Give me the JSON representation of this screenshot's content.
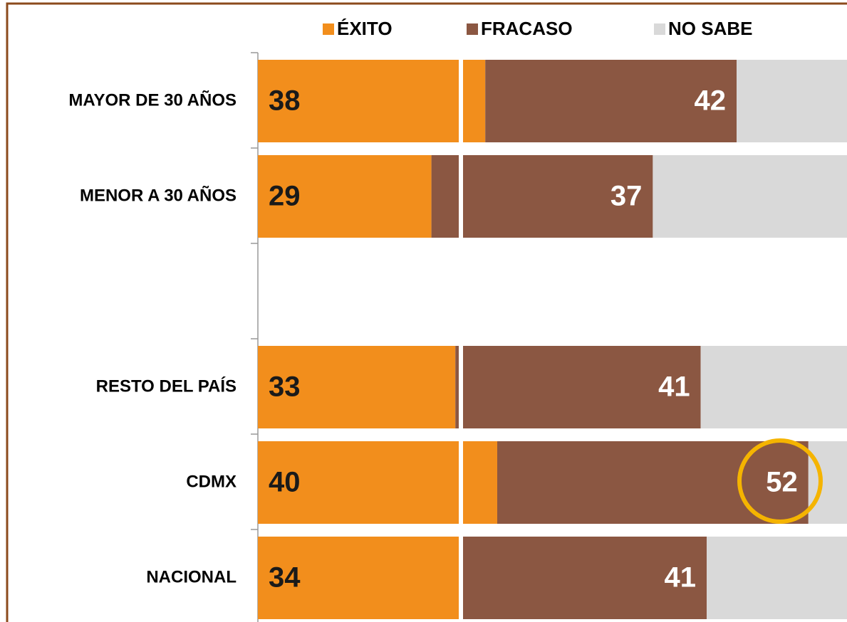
{
  "chart_data": {
    "type": "stacked-bar-horizontal",
    "categories": [
      "MAYOR DE 30 AÑOS",
      "MENOR A 30 AÑOS",
      null,
      "RESTO DEL PAÍS",
      "CDMX",
      "NACIONAL"
    ],
    "series": [
      {
        "name": "ÉXITO",
        "color": "#f28e1c",
        "values": [
          38,
          29,
          null,
          33,
          40,
          34
        ]
      },
      {
        "name": "FRACASO",
        "color": "#8b5742",
        "values": [
          42,
          37,
          null,
          41,
          52,
          41
        ]
      },
      {
        "name": "NO SABE",
        "color": "#d9d9d9",
        "values": [
          20,
          34,
          null,
          26,
          8,
          25
        ]
      }
    ],
    "xlim": [
      0,
      100
    ],
    "legend": "top"
  }
}
